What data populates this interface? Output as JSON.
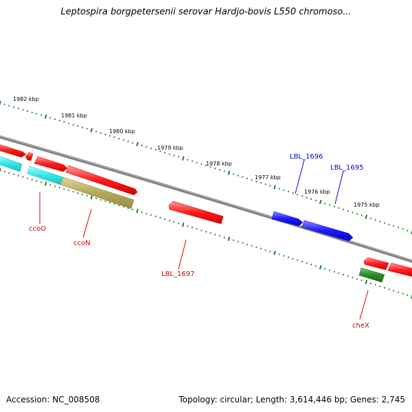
{
  "title": "Leptospira borgpetersenii serovar Hardjo-bovis L550 chromoso...",
  "footer": {
    "accession": "Accession: NC_008508",
    "stats": "Topology: circular; Length: 3,614,446 bp; Genes: 2,745"
  },
  "scale_labels": [
    "1982 kbp",
    "1981 kbp",
    "1980 kbp",
    "1979 kbp",
    "1978 kbp",
    "1977 kbp",
    "1976 kbp",
    "1975 kbp"
  ],
  "gene_labels": [
    "ccoO",
    "ccoN",
    "LBL_1697",
    "LBL_1696",
    "LBL_1695",
    "cheX"
  ],
  "colors": {
    "backbone": "#808080",
    "ticks": "#1f7a1f",
    "red_feature": "#ff1a1a",
    "blue_feature": "#1a1aff",
    "cyan_feature": "#33e6e6",
    "olive_feature": "#b3a85a",
    "green_feature": "#2a8a2a",
    "red_label": "#cc0000",
    "blue_label": "#0000cc"
  }
}
